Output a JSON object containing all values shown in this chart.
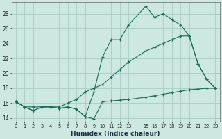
{
  "xlabel": "Humidex (Indice chaleur)",
  "background_color": "#cce8e0",
  "grid_color": "#aaccc4",
  "line_color": "#1a6a5a",
  "xlim": [
    -0.5,
    23.5
  ],
  "ylim": [
    13.5,
    29.5
  ],
  "xticks": [
    0,
    1,
    2,
    3,
    4,
    5,
    6,
    7,
    8,
    9,
    10,
    11,
    12,
    13,
    15,
    16,
    17,
    18,
    19,
    20,
    21,
    22,
    23
  ],
  "yticks": [
    14,
    16,
    18,
    20,
    22,
    24,
    26,
    28
  ],
  "series": [
    {
      "x": [
        0,
        1,
        2,
        3,
        4,
        5,
        6,
        7,
        8,
        9,
        10,
        11,
        12,
        13,
        15,
        16,
        17,
        18,
        19,
        20,
        21,
        22,
        23
      ],
      "y": [
        16.2,
        15.5,
        15.0,
        15.5,
        15.5,
        15.3,
        15.5,
        15.2,
        14.2,
        13.9,
        16.2,
        16.3,
        16.4,
        16.5,
        16.8,
        17.0,
        17.2,
        17.4,
        17.6,
        17.8,
        17.9,
        18.0,
        18.0
      ]
    },
    {
      "x": [
        0,
        1,
        2,
        3,
        4,
        5,
        6,
        7,
        8,
        9,
        10,
        11,
        12,
        13,
        15,
        16,
        17,
        18,
        19,
        20,
        21,
        22,
        23
      ],
      "y": [
        16.2,
        15.5,
        15.0,
        15.5,
        15.5,
        15.3,
        15.5,
        15.2,
        14.2,
        17.5,
        22.2,
        24.5,
        24.5,
        26.5,
        29.0,
        27.5,
        28.0,
        27.2,
        26.5,
        25.0,
        21.3,
        19.2,
        18.0
      ]
    },
    {
      "x": [
        0,
        1,
        2,
        3,
        4,
        5,
        6,
        7,
        8,
        9,
        10,
        11,
        12,
        13,
        15,
        16,
        17,
        18,
        19,
        20,
        21,
        22,
        23
      ],
      "y": [
        16.2,
        15.5,
        15.5,
        15.5,
        15.5,
        15.5,
        16.0,
        16.5,
        17.5,
        18.0,
        18.5,
        19.5,
        20.5,
        21.5,
        23.0,
        23.5,
        24.0,
        24.5,
        25.0,
        25.0,
        21.3,
        19.2,
        18.0
      ]
    }
  ]
}
